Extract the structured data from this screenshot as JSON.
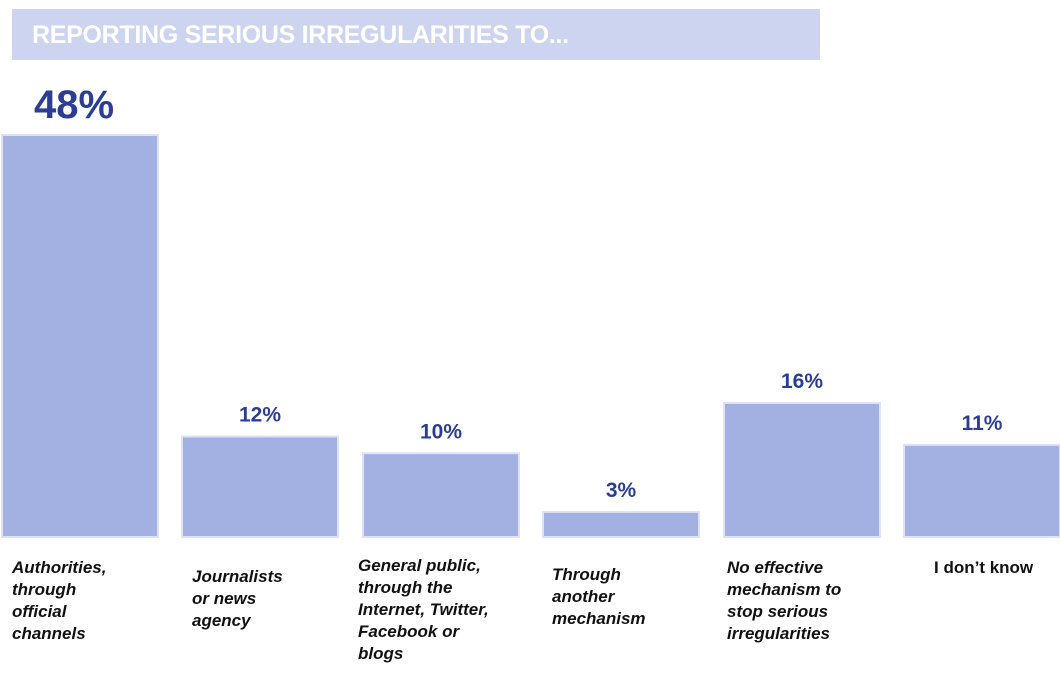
{
  "title": "REPORTING SERIOUS IRREGULARITIES TO...",
  "colors": {
    "bar_fill": "#a3b0e2",
    "title_band": "#cdd4ef",
    "value_text": "#2b3d94"
  },
  "chart_data": {
    "type": "bar",
    "title": "REPORTING SERIOUS IRREGULARITIES TO...",
    "xlabel": "",
    "ylabel": "",
    "ylim": [
      0,
      48
    ],
    "grid": false,
    "categories": [
      "Authorities, through official channels",
      "Journalists or news agency",
      "General public, through the Internet, Twitter, Facebook or blogs",
      "Through another mechanism",
      "No effective mechanism to stop serious irregularities",
      "I don’t know"
    ],
    "values": [
      48,
      12,
      10,
      3,
      16,
      11
    ],
    "value_labels": [
      "48%",
      "12%",
      "10%",
      "3%",
      "16%",
      "11%"
    ]
  },
  "labels": {
    "cat_0": "Authorities,\nthrough\nofficial\nchannels",
    "cat_1": "Journalists\nor news\nagency",
    "cat_2": "General public,\nthrough the\nInternet, Twitter,\nFacebook or\nblogs",
    "cat_3": "Through\nanother\nmechanism",
    "cat_4": "No effective\nmechanism to\nstop serious\nirregularities",
    "cat_5": "I don’t know"
  }
}
